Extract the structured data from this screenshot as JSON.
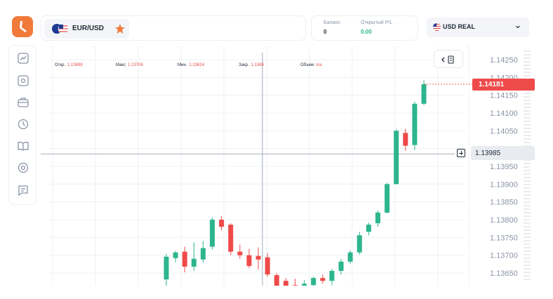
{
  "app": {
    "logo_icon": "app-logo-icon",
    "brand_color": "#f07a3a"
  },
  "sidebar": {
    "items": [
      {
        "icon": "chart-icon"
      },
      {
        "icon": "chart-settings-icon"
      },
      {
        "icon": "briefcase-icon"
      },
      {
        "icon": "clock-icon"
      },
      {
        "icon": "book-icon"
      },
      {
        "icon": "settings-icon"
      },
      {
        "icon": "chat-icon"
      }
    ]
  },
  "header": {
    "asset": {
      "label": "EUR/USD",
      "favorite": true,
      "favorite_icon": "star-icon"
    },
    "balance": {
      "label": "Баланс",
      "value": "0"
    },
    "pnl": {
      "label": "Открытый P/L",
      "value": "0.00"
    },
    "account": {
      "label": "USD REAL",
      "icon": "us-flag-icon"
    }
  },
  "ohlc": {
    "open_label": "Откр.",
    "open": "1.13698",
    "high_label": "Макс",
    "high": "1.13706",
    "low_label": "Мин.",
    "low": "1.13624",
    "close_label": "Закр.",
    "close": "1.1365",
    "volume_label": "Объем",
    "volume": "n/a"
  },
  "price_axis": {
    "ticks": [
      "1.14250",
      "1.14200",
      "1.14150",
      "1.14100",
      "1.14050",
      "1.13950",
      "1.13900",
      "1.13850",
      "1.13800",
      "1.13750",
      "1.13700",
      "1.13650"
    ],
    "current_price": "1.14181",
    "crosshair_price": "1.13985"
  },
  "colors": {
    "up": "#2db58d",
    "down": "#ef4a4a",
    "grid": "#eef0f3",
    "label_bg": "#e8ebf0"
  },
  "chart_data": {
    "type": "candlestick",
    "symbol": "EUR/USD",
    "ylim": [
      1.1362,
      1.1428
    ],
    "candles": [
      {
        "o": 1.13632,
        "h": 1.13704,
        "l": 1.136,
        "c": 1.13696
      },
      {
        "o": 1.13692,
        "h": 1.13712,
        "l": 1.1368,
        "c": 1.13708
      },
      {
        "o": 1.1371,
        "h": 1.13724,
        "l": 1.13652,
        "c": 1.13668
      },
      {
        "o": 1.13668,
        "h": 1.13736,
        "l": 1.13656,
        "c": 1.1369
      },
      {
        "o": 1.13688,
        "h": 1.1374,
        "l": 1.1368,
        "c": 1.1372
      },
      {
        "o": 1.13724,
        "h": 1.13806,
        "l": 1.13716,
        "c": 1.138
      },
      {
        "o": 1.138,
        "h": 1.1381,
        "l": 1.1377,
        "c": 1.1378
      },
      {
        "o": 1.13786,
        "h": 1.1379,
        "l": 1.137,
        "c": 1.1371
      },
      {
        "o": 1.1371,
        "h": 1.1373,
        "l": 1.1369,
        "c": 1.137
      },
      {
        "o": 1.137,
        "h": 1.13718,
        "l": 1.13664,
        "c": 1.1367
      },
      {
        "o": 1.13698,
        "h": 1.13722,
        "l": 1.1366,
        "c": 1.13688
      },
      {
        "o": 1.13694,
        "h": 1.13706,
        "l": 1.1364,
        "c": 1.13646
      },
      {
        "o": 1.13644,
        "h": 1.1365,
        "l": 1.136,
        "c": 1.13612
      },
      {
        "o": 1.13628,
        "h": 1.13636,
        "l": 1.136,
        "c": 1.13606
      },
      {
        "o": 1.13616,
        "h": 1.13634,
        "l": 1.136,
        "c": 1.13604
      },
      {
        "o": 1.13608,
        "h": 1.1363,
        "l": 1.136,
        "c": 1.1362
      },
      {
        "o": 1.13616,
        "h": 1.1364,
        "l": 1.136,
        "c": 1.13636
      },
      {
        "o": 1.13636,
        "h": 1.13646,
        "l": 1.1362,
        "c": 1.13628
      },
      {
        "o": 1.13628,
        "h": 1.13662,
        "l": 1.13616,
        "c": 1.13656
      },
      {
        "o": 1.13656,
        "h": 1.1369,
        "l": 1.13646,
        "c": 1.13682
      },
      {
        "o": 1.13682,
        "h": 1.13714,
        "l": 1.13676,
        "c": 1.13708
      },
      {
        "o": 1.13708,
        "h": 1.13766,
        "l": 1.13702,
        "c": 1.13756
      },
      {
        "o": 1.13766,
        "h": 1.13792,
        "l": 1.13756,
        "c": 1.13786
      },
      {
        "o": 1.1379,
        "h": 1.13826,
        "l": 1.1378,
        "c": 1.1382
      },
      {
        "o": 1.1382,
        "h": 1.13904,
        "l": 1.13818,
        "c": 1.139
      },
      {
        "o": 1.139,
        "h": 1.14054,
        "l": 1.139,
        "c": 1.1405
      },
      {
        "o": 1.14044,
        "h": 1.14056,
        "l": 1.13994,
        "c": 1.14008
      },
      {
        "o": 1.1401,
        "h": 1.14132,
        "l": 1.13996,
        "c": 1.14126
      },
      {
        "o": 1.14126,
        "h": 1.14192,
        "l": 1.14122,
        "c": 1.14181
      }
    ]
  }
}
